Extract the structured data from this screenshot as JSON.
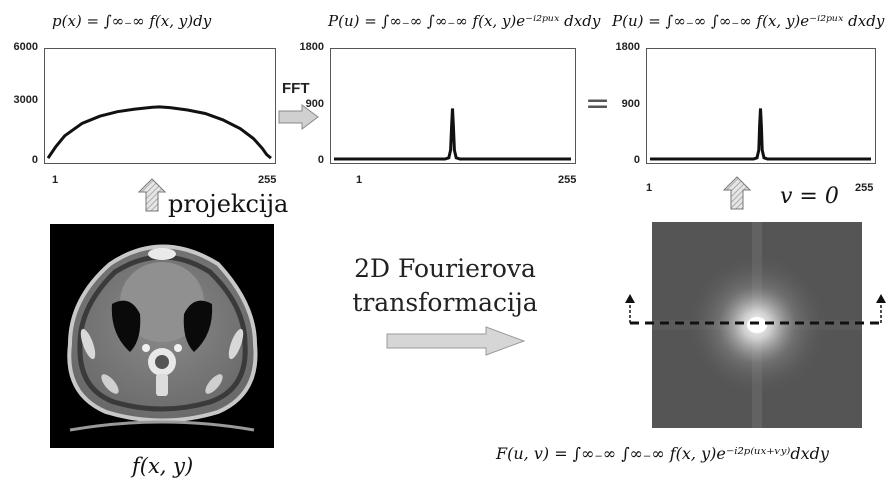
{
  "formulas": {
    "px": "p(x) = ∫∞₋∞ f(x, y)dy",
    "pu_1": "P(u) = ∫∞₋∞ ∫∞₋∞ f(x, y)e⁻ⁱ²ᵖᵘˣ dxdy",
    "pu_2": "P(u) = ∫∞₋∞ ∫∞₋∞ f(x, y)e⁻ⁱ²ᵖᵘˣ dxdy",
    "fuv": "F(u, v) = ∫∞₋∞ ∫∞₋∞ f(x, y)e⁻ⁱ²ᵖ⁽ᵘˣ⁺ᵛʸ⁾dxdy",
    "fxy": "f(x, y)"
  },
  "labels": {
    "fft": "FFT",
    "equals": "=",
    "projekcija": "projekcija",
    "v_zero": "v = 0",
    "transform_line1": "2D Fourierova",
    "transform_line2": "transformacija"
  },
  "chart_data": [
    {
      "type": "line",
      "x_ticks": [
        "1",
        "255"
      ],
      "y_ticks": [
        "6000",
        "3000",
        "0"
      ],
      "xlim": [
        1,
        255
      ],
      "ylim": [
        0,
        6000
      ],
      "series": [
        {
          "x": [
            1,
            10,
            20,
            40,
            60,
            80,
            100,
            120,
            128,
            140,
            160,
            180,
            200,
            220,
            235,
            245,
            250,
            255
          ],
          "y": [
            50,
            700,
            1300,
            2000,
            2400,
            2650,
            2800,
            2900,
            2920,
            2880,
            2750,
            2550,
            2200,
            1700,
            1150,
            600,
            250,
            50
          ]
        }
      ]
    },
    {
      "type": "line",
      "x_ticks": [
        "1",
        "255"
      ],
      "y_ticks": [
        "1800",
        "900",
        "0"
      ],
      "xlim": [
        1,
        255
      ],
      "ylim": [
        0,
        1800
      ],
      "series": [
        {
          "x": [
            1,
            120,
            124,
            126,
            127,
            128,
            129,
            130,
            132,
            136,
            255
          ],
          "y": [
            0,
            0,
            20,
            150,
            550,
            850,
            550,
            150,
            20,
            0,
            0
          ]
        }
      ]
    },
    {
      "type": "line",
      "x_ticks": [
        "1",
        "255"
      ],
      "y_ticks": [
        "1800",
        "900",
        "0"
      ],
      "xlim": [
        1,
        255
      ],
      "ylim": [
        0,
        1800
      ],
      "series": [
        {
          "x": [
            1,
            120,
            124,
            126,
            127,
            128,
            129,
            130,
            132,
            136,
            255
          ],
          "y": [
            0,
            0,
            20,
            150,
            550,
            850,
            550,
            150,
            20,
            0,
            0
          ]
        }
      ]
    }
  ]
}
